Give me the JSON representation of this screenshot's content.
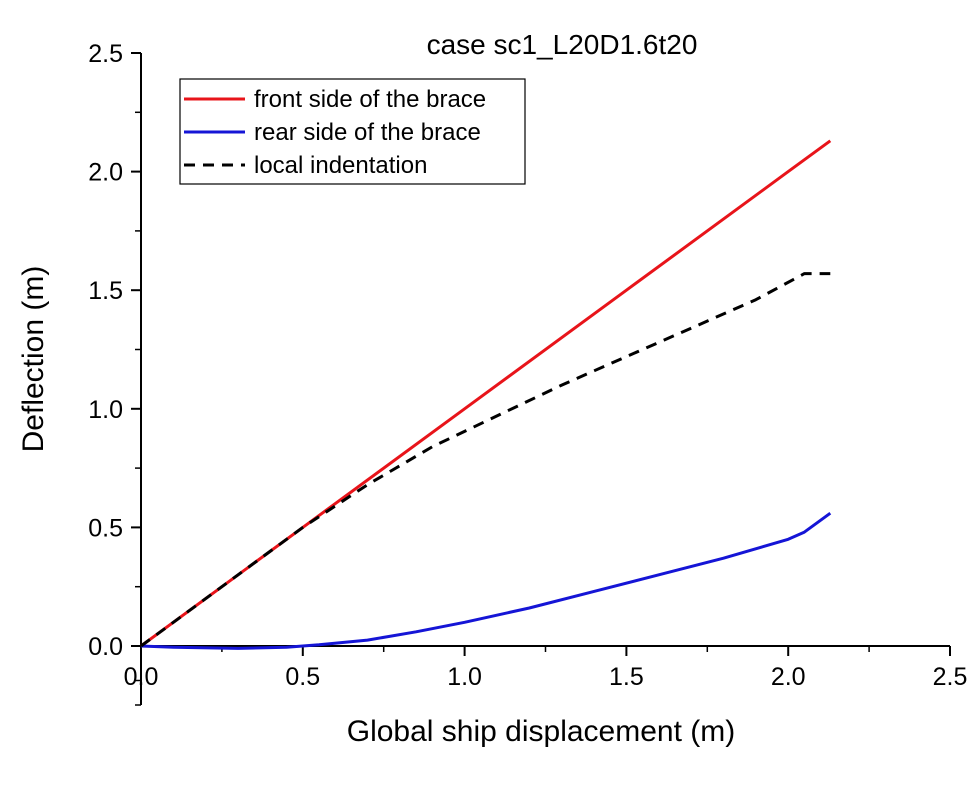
{
  "chart_data": {
    "type": "line",
    "title": "case sc1_L20D1.6t20",
    "xlabel": "Global ship displacement (m)",
    "ylabel": "Deflection (m)",
    "xlim": [
      0,
      2.5
    ],
    "ylim": [
      0,
      2.5
    ],
    "xticks": [
      "0.0",
      "0.5",
      "1.0",
      "1.5",
      "2.0",
      "2.5"
    ],
    "yticks": [
      "0.0",
      "0.5",
      "1.0",
      "1.5",
      "2.0",
      "2.5"
    ],
    "grid": false,
    "legend_position": "top-left",
    "series": [
      {
        "name": "front side of the brace",
        "color": "#e8141a",
        "style": "solid",
        "points": [
          [
            0,
            0
          ],
          [
            0.5,
            0.5
          ],
          [
            1.0,
            1.0
          ],
          [
            1.5,
            1.5
          ],
          [
            2.0,
            2.0
          ],
          [
            2.13,
            2.13
          ]
        ]
      },
      {
        "name": "rear side of the brace",
        "color": "#1515d6",
        "style": "solid",
        "points": [
          [
            0,
            0
          ],
          [
            0.1,
            -0.005
          ],
          [
            0.3,
            -0.01
          ],
          [
            0.45,
            -0.005
          ],
          [
            0.55,
            0.005
          ],
          [
            0.7,
            0.025
          ],
          [
            0.85,
            0.06
          ],
          [
            1.0,
            0.1
          ],
          [
            1.2,
            0.16
          ],
          [
            1.4,
            0.23
          ],
          [
            1.6,
            0.3
          ],
          [
            1.8,
            0.37
          ],
          [
            2.0,
            0.45
          ],
          [
            2.05,
            0.48
          ],
          [
            2.13,
            0.56
          ]
        ]
      },
      {
        "name": "local indentation",
        "color": "#000000",
        "style": "dashed",
        "points": [
          [
            0,
            0
          ],
          [
            0.1,
            0.1
          ],
          [
            0.3,
            0.3
          ],
          [
            0.5,
            0.5
          ],
          [
            0.7,
            0.68
          ],
          [
            0.9,
            0.84
          ],
          [
            1.1,
            0.97
          ],
          [
            1.3,
            1.1
          ],
          [
            1.5,
            1.22
          ],
          [
            1.7,
            1.34
          ],
          [
            1.9,
            1.46
          ],
          [
            2.05,
            1.57
          ],
          [
            2.13,
            1.57
          ]
        ]
      }
    ]
  }
}
